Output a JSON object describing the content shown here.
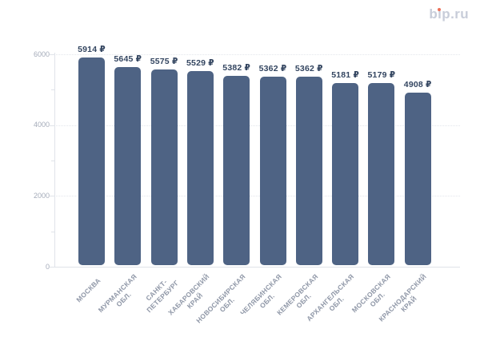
{
  "logo": {
    "text": "bip.ru"
  },
  "chart_data": {
    "type": "bar",
    "title": "",
    "xlabel": "",
    "ylabel": "",
    "currency_symbol": "₽",
    "categories": [
      "МОСКВА",
      "МУРМАНСКАЯ ОБЛ.",
      "САНКТ-ПЕТЕРБУРГ",
      "ХАБАРОВСКИЙ КРАЙ",
      "НОВОСИБИРСКАЯ ОБЛ.",
      "ЧЕЛЯБИНСКАЯ ОБЛ.",
      "КЕМЕРОВСКАЯ ОБЛ.",
      "АРХАНГЕЛЬСКАЯ ОБЛ.",
      "МОСКОВСКАЯ ОБЛ.",
      "КРАСНОДАРСКИЙ КРАЙ"
    ],
    "category_label_lines": [
      [
        "МОСКВА"
      ],
      [
        "МУРМАНСКАЯ",
        "ОБЛ."
      ],
      [
        "САНКТ-",
        "ПЕТЕРБУРГ"
      ],
      [
        "ХАБАРОВСКИЙ",
        "КРАЙ"
      ],
      [
        "НОВОСИБИРСКАЯ",
        "ОБЛ."
      ],
      [
        "ЧЕЛЯБИНСКАЯ",
        "ОБЛ."
      ],
      [
        "КЕМЕРОВСКАЯ",
        "ОБЛ."
      ],
      [
        "АРХАНГЕЛЬСКАЯ",
        "ОБЛ."
      ],
      [
        "МОСКОВСКАЯ",
        "ОБЛ."
      ],
      [
        "КРАСНОДАРСКИЙ",
        "КРАЙ"
      ]
    ],
    "values": [
      5914,
      5645,
      5575,
      5529,
      5382,
      5362,
      5362,
      5181,
      5179,
      4908
    ],
    "value_labels": [
      "5914 ₽",
      "5645 ₽",
      "5575 ₽",
      "5529 ₽",
      "5382 ₽",
      "5362 ₽",
      "5362 ₽",
      "5181 ₽",
      "5179 ₽",
      "4908 ₽"
    ],
    "ylim": [
      0,
      6000
    ],
    "yticks_major": [
      0,
      2000,
      4000,
      6000
    ],
    "yticks_minor": [
      1000,
      3000,
      5000
    ],
    "grid": "horizontal-dotted-at-major-ticks",
    "legend": "none",
    "colors": {
      "bar": "#4e6384",
      "value_label": "#334560",
      "axis_tick_label": "#a4abb9",
      "category_label": "#8f97a7",
      "gridline": "#e3e6ec",
      "axis_line": "#e0e3e9",
      "logo_text": "#c8cdd9",
      "logo_dot": "#ec7058"
    }
  }
}
